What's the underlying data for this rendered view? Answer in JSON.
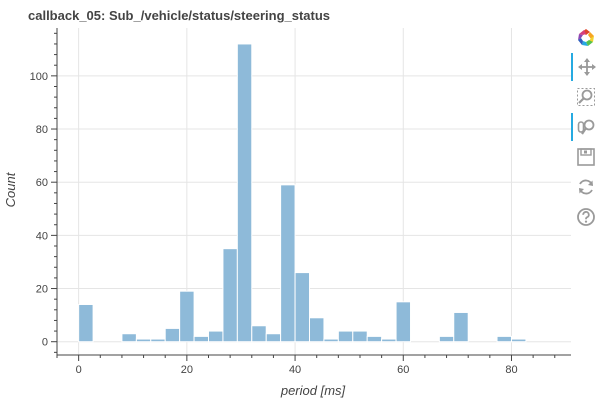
{
  "title": "callback_05: Sub_/vehicle/status/steering_status",
  "toolbar": {
    "tools": [
      {
        "name": "bokeh-logo-icon",
        "active": false
      },
      {
        "name": "pan-icon",
        "active": true
      },
      {
        "name": "box-zoom-icon",
        "active": false
      },
      {
        "name": "wheel-zoom-icon",
        "active": true
      },
      {
        "name": "save-icon",
        "active": false
      },
      {
        "name": "reset-icon",
        "active": false
      },
      {
        "name": "help-icon",
        "active": false
      }
    ]
  },
  "colors": {
    "bar_fill": "#8ebad9",
    "bar_stroke": "#ffffff",
    "grid": "#e5e5e5",
    "axis": "#444444",
    "active_tool": "#26aae1",
    "icon": "#9a9a9a"
  },
  "chart_data": {
    "type": "bar",
    "title": "callback_05: Sub_/vehicle/status/steering_status",
    "xlabel": "period [ms]",
    "ylabel": "Count",
    "xlim": [
      -4,
      91
    ],
    "ylim": [
      -5,
      118
    ],
    "xticks": [
      0,
      20,
      40,
      60,
      80
    ],
    "yticks": [
      0,
      20,
      40,
      60,
      80,
      100
    ],
    "bin_width": 2.67,
    "grid": true,
    "bins": [
      {
        "x": 0.0,
        "count": 14
      },
      {
        "x": 2.67,
        "count": 0
      },
      {
        "x": 5.33,
        "count": 0
      },
      {
        "x": 8.0,
        "count": 3
      },
      {
        "x": 10.67,
        "count": 1
      },
      {
        "x": 13.33,
        "count": 1
      },
      {
        "x": 16.0,
        "count": 5
      },
      {
        "x": 18.67,
        "count": 19
      },
      {
        "x": 21.33,
        "count": 2
      },
      {
        "x": 24.0,
        "count": 4
      },
      {
        "x": 26.67,
        "count": 35
      },
      {
        "x": 29.33,
        "count": 112
      },
      {
        "x": 32.0,
        "count": 6
      },
      {
        "x": 34.67,
        "count": 3
      },
      {
        "x": 37.33,
        "count": 59
      },
      {
        "x": 40.0,
        "count": 26
      },
      {
        "x": 42.67,
        "count": 9
      },
      {
        "x": 45.33,
        "count": 1
      },
      {
        "x": 48.0,
        "count": 4
      },
      {
        "x": 50.67,
        "count": 4
      },
      {
        "x": 53.33,
        "count": 2
      },
      {
        "x": 56.0,
        "count": 1
      },
      {
        "x": 58.67,
        "count": 15
      },
      {
        "x": 61.33,
        "count": 0
      },
      {
        "x": 64.0,
        "count": 0
      },
      {
        "x": 66.67,
        "count": 2
      },
      {
        "x": 69.33,
        "count": 11
      },
      {
        "x": 72.0,
        "count": 0
      },
      {
        "x": 74.67,
        "count": 0
      },
      {
        "x": 77.33,
        "count": 2
      },
      {
        "x": 80.0,
        "count": 1
      },
      {
        "x": 82.67,
        "count": 0
      }
    ]
  }
}
